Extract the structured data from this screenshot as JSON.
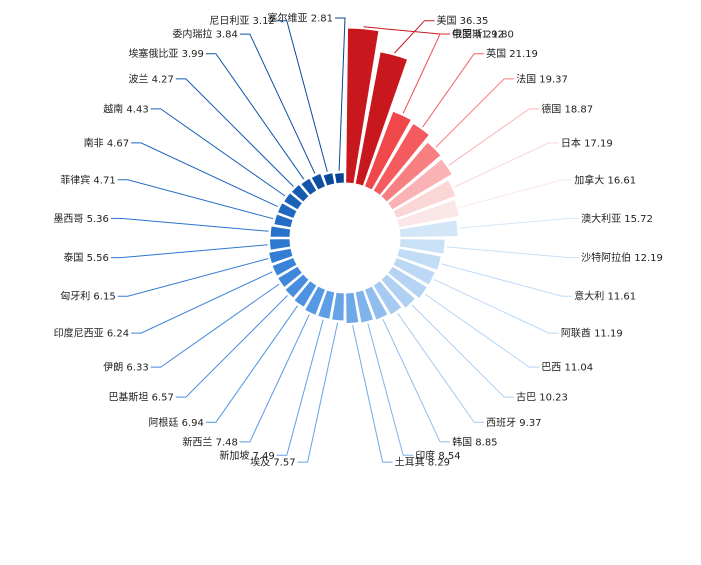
{
  "chart_data": {
    "type": "pie",
    "variant": "nightingale-rose",
    "title": "",
    "unit": "",
    "slices": [
      {
        "label": "中国",
        "value": 41.92,
        "color": "#C8171D"
      },
      {
        "label": "美国",
        "value": 36.35,
        "color": "#C8171D"
      },
      {
        "label": "俄罗斯",
        "value": 21.8,
        "color": "#F0474B"
      },
      {
        "label": "英国",
        "value": 21.19,
        "color": "#F45A5E"
      },
      {
        "label": "法国",
        "value": 19.37,
        "color": "#F77E81"
      },
      {
        "label": "德国",
        "value": 18.87,
        "color": "#FAB2B4"
      },
      {
        "label": "日本",
        "value": 17.19,
        "color": "#FBD6D7"
      },
      {
        "label": "加拿大",
        "value": 16.61,
        "color": "#FCE7E8"
      },
      {
        "label": "澳大利亚",
        "value": 15.72,
        "color": "#D3E6F8"
      },
      {
        "label": "沙特阿拉伯",
        "value": 12.19,
        "color": "#C9E1F7"
      },
      {
        "label": "意大利",
        "value": 11.61,
        "color": "#C2DCF5"
      },
      {
        "label": "阿联酋",
        "value": 11.19,
        "color": "#BCD8F4"
      },
      {
        "label": "巴西",
        "value": 11.04,
        "color": "#B5D4F3"
      },
      {
        "label": "古巴",
        "value": 10.23,
        "color": "#AFD0F2"
      },
      {
        "label": "西班牙",
        "value": 9.37,
        "color": "#A6CAF1"
      },
      {
        "label": "韩国",
        "value": 8.85,
        "color": "#8EBDEE"
      },
      {
        "label": "印度",
        "value": 8.54,
        "color": "#7FB3EB"
      },
      {
        "label": "土耳其",
        "value": 8.29,
        "color": "#6FA8E8"
      },
      {
        "label": "埃及",
        "value": 7.57,
        "color": "#66A3E7"
      },
      {
        "label": "新加坡",
        "value": 7.49,
        "color": "#5E9EE5"
      },
      {
        "label": "新西兰",
        "value": 7.48,
        "color": "#5699E3"
      },
      {
        "label": "阿根廷",
        "value": 6.94,
        "color": "#4E93E1"
      },
      {
        "label": "巴基斯坦",
        "value": 6.57,
        "color": "#478DDE"
      },
      {
        "label": "伊朗",
        "value": 6.33,
        "color": "#4088DB"
      },
      {
        "label": "印度尼西亚",
        "value": 6.24,
        "color": "#3A83D8"
      },
      {
        "label": "匈牙利",
        "value": 6.15,
        "color": "#347DD4"
      },
      {
        "label": "泰国",
        "value": 5.56,
        "color": "#2E78D0"
      },
      {
        "label": "墨西哥",
        "value": 5.36,
        "color": "#2973CB"
      },
      {
        "label": "菲律宾",
        "value": 4.71,
        "color": "#246DC5"
      },
      {
        "label": "南非",
        "value": 4.67,
        "color": "#1F67BF"
      },
      {
        "label": "越南",
        "value": 4.43,
        "color": "#1A61B8"
      },
      {
        "label": "波兰",
        "value": 4.27,
        "color": "#165BB1"
      },
      {
        "label": "埃塞俄比亚",
        "value": 3.99,
        "color": "#1255AA"
      },
      {
        "label": "委内瑞拉",
        "value": 3.84,
        "color": "#0F50A3"
      },
      {
        "label": "尼日利亚",
        "value": 3.12,
        "color": "#0B4A9B"
      },
      {
        "label": "塞尔维亚",
        "value": 2.81,
        "color": "#084493"
      }
    ],
    "label_format": "{label} {value}",
    "legend": "none",
    "grid": false
  }
}
